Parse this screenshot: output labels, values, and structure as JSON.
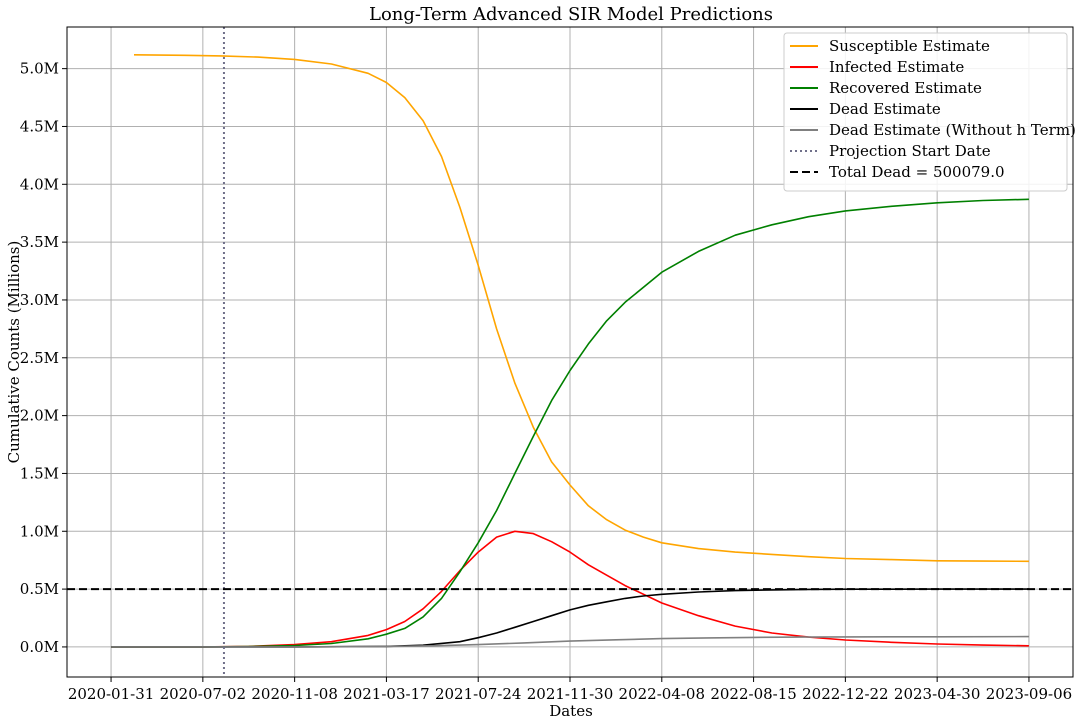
{
  "chart_data": {
    "type": "line",
    "title": "Long-Term Advanced SIR Model Predictions",
    "xlabel": "Dates",
    "ylabel": "Cumulative Counts (Millions)",
    "x_tick_labels": [
      "2020-01-31",
      "2020-07-02",
      "2020-11-08",
      "2021-03-17",
      "2021-07-24",
      "2021-11-30",
      "2022-04-08",
      "2022-08-15",
      "2022-12-22",
      "2023-04-30",
      "2023-09-06"
    ],
    "x_ticks": [
      0,
      1,
      2,
      3,
      4,
      5,
      6,
      7,
      8,
      9,
      10
    ],
    "xlim": [
      -0.48,
      10.48
    ],
    "y_tick_labels": [
      "0.0M",
      "0.5M",
      "1.0M",
      "1.5M",
      "2.0M",
      "2.5M",
      "3.0M",
      "3.5M",
      "4.0M",
      "4.5M",
      "5.0M"
    ],
    "y_ticks": [
      0,
      0.5,
      1.0,
      1.5,
      2.0,
      2.5,
      3.0,
      3.5,
      4.0,
      4.5,
      5.0
    ],
    "ylim": [
      -0.26,
      5.36
    ],
    "grid": true,
    "legend_position": "top-right",
    "series": [
      {
        "name": "Susceptible Estimate",
        "color": "#ffa500",
        "style": "solid",
        "x": [
          0.25,
          0.8,
          1.2,
          1.6,
          2.0,
          2.4,
          2.8,
          3.0,
          3.2,
          3.4,
          3.6,
          3.8,
          4.0,
          4.2,
          4.4,
          4.6,
          4.8,
          5.0,
          5.2,
          5.4,
          5.6,
          5.8,
          6.0,
          6.4,
          6.8,
          7.2,
          7.6,
          8.0,
          8.5,
          9.0,
          9.5,
          10.0
        ],
        "y": [
          5.12,
          5.115,
          5.11,
          5.1,
          5.08,
          5.04,
          4.96,
          4.88,
          4.75,
          4.55,
          4.24,
          3.8,
          3.3,
          2.75,
          2.28,
          1.9,
          1.6,
          1.4,
          1.22,
          1.1,
          1.01,
          0.95,
          0.9,
          0.85,
          0.82,
          0.8,
          0.78,
          0.765,
          0.755,
          0.745,
          0.742,
          0.74
        ]
      },
      {
        "name": "Infected Estimate",
        "color": "#ff0000",
        "style": "solid",
        "x": [
          0,
          1,
          1.5,
          2.0,
          2.4,
          2.8,
          3.0,
          3.2,
          3.4,
          3.6,
          3.8,
          4.0,
          4.2,
          4.4,
          4.6,
          4.8,
          5.0,
          5.2,
          5.4,
          5.6,
          6.0,
          6.4,
          6.8,
          7.2,
          7.6,
          8.0,
          8.5,
          9.0,
          9.5,
          10.0
        ],
        "y": [
          0,
          0,
          0.005,
          0.02,
          0.045,
          0.1,
          0.15,
          0.22,
          0.33,
          0.48,
          0.66,
          0.82,
          0.95,
          1.0,
          0.98,
          0.91,
          0.82,
          0.71,
          0.62,
          0.53,
          0.38,
          0.27,
          0.18,
          0.12,
          0.085,
          0.06,
          0.04,
          0.025,
          0.016,
          0.01
        ]
      },
      {
        "name": "Recovered Estimate",
        "color": "#008000",
        "style": "solid",
        "x": [
          0,
          1,
          1.5,
          2.0,
          2.4,
          2.8,
          3.0,
          3.2,
          3.4,
          3.6,
          3.8,
          4.0,
          4.2,
          4.4,
          4.6,
          4.8,
          5.0,
          5.2,
          5.4,
          5.6,
          6.0,
          6.4,
          6.8,
          7.2,
          7.6,
          8.0,
          8.5,
          9.0,
          9.5,
          10.0
        ],
        "y": [
          0,
          0,
          0.003,
          0.012,
          0.03,
          0.07,
          0.11,
          0.16,
          0.26,
          0.42,
          0.65,
          0.9,
          1.18,
          1.5,
          1.82,
          2.13,
          2.39,
          2.62,
          2.82,
          2.98,
          3.24,
          3.42,
          3.56,
          3.65,
          3.72,
          3.77,
          3.81,
          3.84,
          3.86,
          3.87
        ]
      },
      {
        "name": "Dead Estimate",
        "color": "#000000",
        "style": "solid",
        "x": [
          0,
          1,
          2.0,
          3.0,
          3.4,
          3.8,
          4.0,
          4.2,
          4.4,
          4.6,
          4.8,
          5.0,
          5.2,
          5.4,
          5.6,
          5.8,
          6.0,
          6.4,
          6.8,
          7.2,
          7.6,
          8.0,
          9.0,
          10.0
        ],
        "y": [
          0,
          0,
          0,
          0.005,
          0.015,
          0.045,
          0.08,
          0.12,
          0.17,
          0.22,
          0.27,
          0.32,
          0.36,
          0.39,
          0.42,
          0.44,
          0.455,
          0.475,
          0.487,
          0.493,
          0.497,
          0.499,
          0.5,
          0.5
        ]
      },
      {
        "name": "Dead Estimate (Without h Term)",
        "color": "#808080",
        "style": "solid",
        "x": [
          0,
          1,
          2.0,
          3.0,
          3.5,
          4.0,
          4.5,
          5.0,
          5.5,
          6.0,
          6.5,
          7.0,
          7.5,
          8.0,
          9.0,
          10.0
        ],
        "y": [
          0,
          0,
          0,
          0.004,
          0.01,
          0.02,
          0.035,
          0.05,
          0.062,
          0.072,
          0.078,
          0.082,
          0.085,
          0.087,
          0.088,
          0.089
        ]
      },
      {
        "name": "Projection Start Date",
        "color": "#70708a",
        "style": "dotted",
        "type": "vline",
        "x_value": 1.23
      },
      {
        "name": "Total Dead = 500079.0",
        "color": "#000000",
        "style": "dashed",
        "type": "hline",
        "y_value": 0.500079
      }
    ]
  }
}
